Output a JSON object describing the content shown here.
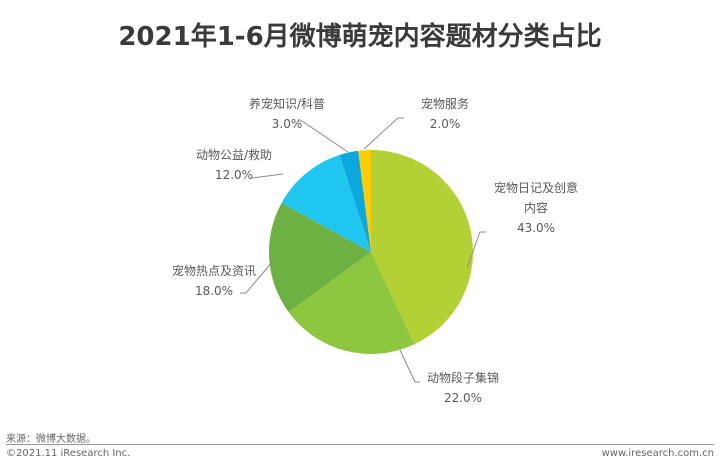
{
  "header": {
    "title": "2021年1-6月微博萌宠内容题材分类占比"
  },
  "chart_data": {
    "type": "pie",
    "title": "2021年1-6月微博萌宠内容题材分类占比",
    "start_angle_deg": 0,
    "direction": "clockwise",
    "slices": [
      {
        "label": "宠物日记及创意内容",
        "label_lines": [
          "宠物日记及创意",
          "内容"
        ],
        "value": 43.0,
        "display": "43.0%",
        "color": "#b3d135"
      },
      {
        "label": "动物段子集锦",
        "label_lines": [
          "动物段子集锦"
        ],
        "value": 22.0,
        "display": "22.0%",
        "color": "#8dc63f"
      },
      {
        "label": "宠物热点及资讯",
        "label_lines": [
          "宠物热点及资讯"
        ],
        "value": 18.0,
        "display": "18.0%",
        "color": "#6db143"
      },
      {
        "label": "动物公益/救助",
        "label_lines": [
          "动物公益/救助"
        ],
        "value": 12.0,
        "display": "12.0%",
        "color": "#1fc6ef"
      },
      {
        "label": "养宠知识/科普",
        "label_lines": [
          "养宠知识/科普"
        ],
        "value": 3.0,
        "display": "3.0%",
        "color": "#0aa8df"
      },
      {
        "label": "宠物服务",
        "label_lines": [
          "宠物服务"
        ],
        "value": 2.0,
        "display": "2.0%",
        "color": "#ffcc00"
      }
    ],
    "legend": "none",
    "labels": "outside with leader lines"
  },
  "footer": {
    "source": "来源：微博大数据。",
    "copyright": "©2021.11 iResearch Inc.",
    "website": "www.iresearch.com.cn"
  }
}
